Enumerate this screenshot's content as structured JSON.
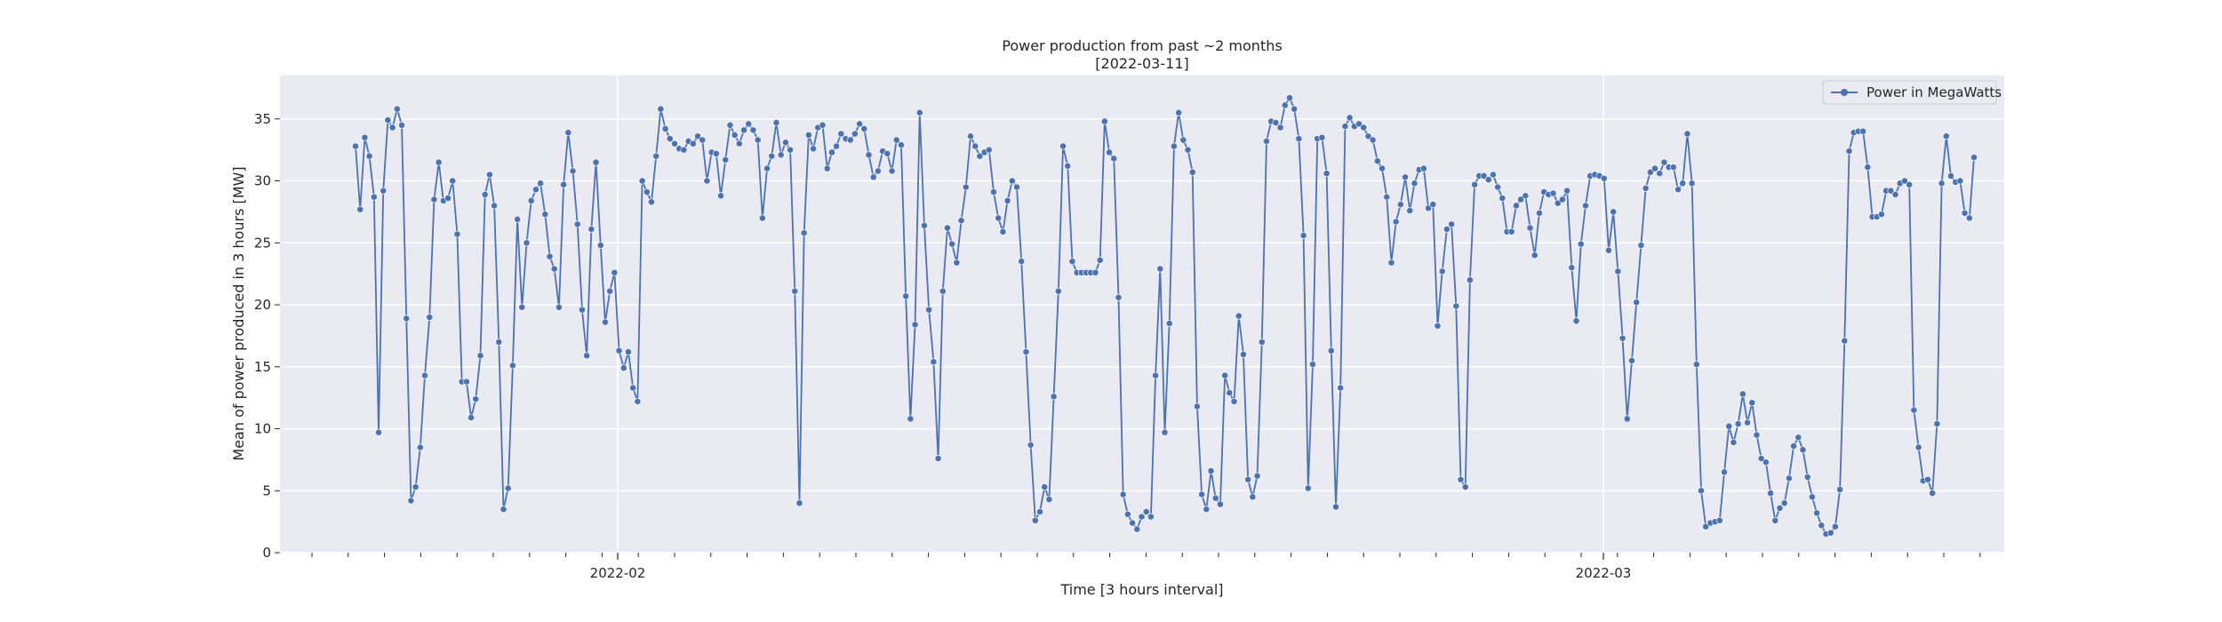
{
  "chart_data": {
    "type": "line",
    "title": "Power production from past ~2 months",
    "subtitle": "[2022-03-11]",
    "xlabel": "Time [3 hours interval]",
    "ylabel": "Mean of power produced in 3 hours [MW]",
    "x_tick_labels": [
      "2022-02",
      "2022-03"
    ],
    "yticks": [
      0,
      5,
      10,
      15,
      20,
      25,
      30,
      35
    ],
    "ylim": [
      0,
      38.5
    ],
    "grid": true,
    "legend_position": "top-right",
    "series": [
      {
        "name": "Power in MegaWatts",
        "color": "#4c72b0",
        "marker": "circle",
        "values": [
          32.8,
          27.7,
          33.5,
          32.0,
          28.7,
          9.7,
          29.2,
          34.9,
          34.3,
          35.8,
          34.5,
          18.9,
          4.2,
          5.3,
          8.5,
          14.3,
          19.0,
          28.5,
          31.5,
          28.4,
          28.6,
          30.0,
          25.7,
          13.8,
          13.8,
          10.9,
          12.4,
          15.9,
          28.9,
          30.5,
          28.0,
          17.0,
          3.5,
          5.2,
          15.1,
          26.9,
          19.8,
          25.0,
          28.4,
          29.3,
          29.8,
          27.3,
          23.9,
          22.9,
          19.8,
          29.7,
          33.9,
          30.8,
          26.5,
          19.6,
          15.9,
          26.1,
          31.5,
          24.8,
          18.6,
          21.1,
          22.6,
          16.3,
          14.9,
          16.2,
          13.3,
          12.2,
          30.0,
          29.1,
          28.3,
          32.0,
          35.8,
          34.2,
          33.4,
          33.0,
          32.6,
          32.5,
          33.2,
          33.0,
          33.6,
          33.3,
          30.0,
          32.3,
          32.2,
          28.8,
          31.7,
          34.5,
          33.7,
          33.0,
          34.1,
          34.6,
          34.1,
          33.3,
          27.0,
          31.0,
          32.0,
          34.7,
          32.1,
          33.1,
          32.5,
          21.1,
          4.0,
          25.8,
          33.7,
          32.6,
          34.3,
          34.5,
          31.0,
          32.3,
          32.8,
          33.8,
          33.4,
          33.3,
          33.8,
          34.6,
          34.2,
          32.1,
          30.3,
          30.8,
          32.4,
          32.2,
          30.8,
          33.3,
          32.9,
          20.7,
          10.8,
          18.4,
          35.5,
          26.4,
          19.6,
          15.4,
          7.6,
          21.1,
          26.2,
          24.9,
          23.4,
          26.8,
          29.5,
          33.6,
          32.8,
          32.0,
          32.3,
          32.5,
          29.1,
          27.0,
          25.9,
          28.4,
          30.0,
          29.5,
          23.5,
          16.2,
          8.7,
          2.6,
          3.3,
          5.3,
          4.3,
          12.6,
          21.1,
          32.8,
          31.2,
          23.5,
          22.6,
          22.6,
          22.6,
          22.6,
          22.6,
          23.6,
          34.8,
          32.3,
          31.8,
          20.6,
          4.7,
          3.1,
          2.4,
          1.9,
          2.9,
          3.3,
          2.9,
          14.3,
          22.9,
          9.7,
          18.5,
          32.8,
          35.5,
          33.3,
          32.5,
          30.7,
          11.8,
          4.7,
          3.5,
          6.6,
          4.4,
          3.9,
          14.3,
          12.9,
          12.2,
          19.1,
          16.0,
          5.9,
          4.5,
          6.2,
          17.0,
          33.2,
          34.8,
          34.7,
          34.3,
          36.1,
          36.7,
          35.8,
          33.4,
          25.6,
          5.2,
          15.2,
          33.4,
          33.5,
          30.6,
          16.3,
          3.7,
          13.3,
          34.4,
          35.1,
          34.4,
          34.6,
          34.3,
          33.6,
          33.3,
          31.6,
          31.0,
          28.7,
          23.4,
          26.7,
          28.1,
          30.3,
          27.6,
          29.8,
          30.9,
          31.0,
          27.8,
          28.1,
          18.3,
          22.7,
          26.1,
          26.5,
          19.9,
          5.9,
          5.3,
          22.0,
          29.7,
          30.4,
          30.4,
          30.1,
          30.5,
          29.5,
          28.6,
          25.9,
          25.9,
          28.0,
          28.5,
          28.8,
          26.2,
          24.0,
          27.4,
          29.1,
          28.9,
          29.0,
          28.2,
          28.5,
          29.2,
          23.0,
          18.7,
          24.9,
          28.0,
          30.4,
          30.5,
          30.4,
          30.2,
          24.4,
          27.5,
          22.7,
          17.3,
          10.8,
          15.5,
          20.2,
          24.8,
          29.4,
          30.7,
          31.0,
          30.6,
          31.5,
          31.1,
          31.1,
          29.3,
          29.8,
          33.8,
          29.8,
          15.2,
          5.0,
          2.1,
          2.4,
          2.5,
          2.6,
          6.5,
          10.2,
          8.9,
          10.4,
          12.8,
          10.5,
          12.1,
          9.5,
          7.6,
          7.3,
          4.8,
          2.6,
          3.6,
          4.0,
          6.0,
          8.6,
          9.3,
          8.3,
          6.1,
          4.5,
          3.2,
          2.2,
          1.5,
          1.6,
          2.1,
          5.1,
          17.1,
          32.4,
          33.9,
          34.0,
          34.0,
          31.1,
          27.1,
          27.1,
          27.3,
          29.2,
          29.2,
          28.9,
          29.8,
          30.0,
          29.7,
          11.5,
          8.5,
          5.8,
          5.9,
          4.8,
          10.4,
          29.8,
          33.6,
          30.4,
          29.9,
          30.0,
          27.4,
          27.0,
          31.9
        ]
      }
    ]
  }
}
